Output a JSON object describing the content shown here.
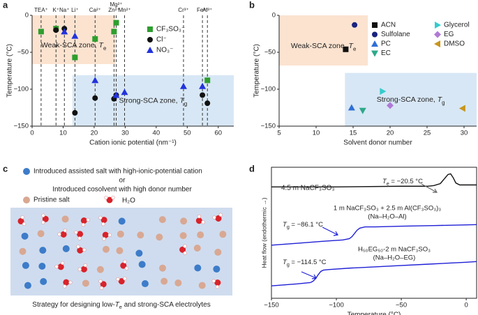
{
  "panel_labels": [
    "a",
    "b",
    "c",
    "d"
  ],
  "chart_data": [
    {
      "type": "scatter",
      "xlabel": "Cation ionic potential (nm⁻¹)",
      "ylabel": "Temperature (°C)",
      "xlim": [
        0,
        65
      ],
      "xticks": [
        0,
        10,
        20,
        30,
        40,
        50,
        60
      ],
      "ylim": [
        -150,
        0
      ],
      "yticks": [
        {
          "value": -150,
          "label": "−150"
        },
        {
          "value": -100,
          "label": "−100"
        },
        {
          "value": -50,
          "label": "−50"
        },
        0
      ],
      "cation_lines": {
        "labels": [
          "TEA⁺",
          "K⁺",
          "Na⁺",
          "Li⁺",
          "Ca²⁺",
          "Zn²⁺",
          "Mg²⁺",
          "Mn²⁺",
          "Cr³⁺",
          "Fe³⁺",
          "Al³⁺"
        ],
        "x": [
          2.9,
          7.7,
          10.4,
          13.8,
          20.3,
          26.4,
          27.1,
          29.8,
          48.8,
          54.9,
          56.5
        ]
      },
      "regions": [
        {
          "label": {
            "prefix": "Weak-SCA zone, ",
            "symbol": "T",
            "subscript": "e"
          },
          "x": [
            0,
            26.8
          ],
          "y": [
            -66,
            0
          ],
          "color": "#fbe3d0"
        },
        {
          "label": {
            "prefix": "Strong-SCA zone, ",
            "symbol": "T",
            "subscript": "g"
          },
          "x": [
            13,
            65
          ],
          "y": [
            -150,
            -81
          ],
          "color": "#d8e7f5"
        }
      ],
      "series": [
        {
          "name": "CF₃SO₃⁻",
          "color": "#2e9e2e",
          "marker": "square",
          "x": [
            2.9,
            7.7,
            13.8,
            20.3,
            26.4,
            27.1,
            56.5
          ],
          "values": [
            -22,
            -18,
            -57,
            -32,
            -22,
            -10,
            -88
          ]
        },
        {
          "name": "Cl⁻",
          "color": "#111111",
          "marker": "circle",
          "x": [
            7.7,
            10.4,
            13.8,
            20.3,
            26.4,
            27.1,
            54.9,
            56.5
          ],
          "values": [
            -20,
            -18,
            -132,
            -112,
            -113,
            -108,
            -108,
            -119
          ]
        },
        {
          "name": "NO₃⁻",
          "color": "#2233dd",
          "marker": "triangle-up",
          "x": [
            10.4,
            13.8,
            20.3,
            27.1,
            29.8,
            48.8,
            54.9
          ],
          "values": [
            -22,
            -28,
            -88,
            -108,
            -104,
            -96,
            -96
          ]
        }
      ]
    },
    {
      "type": "scatter",
      "xlabel": "Solvent donor number",
      "ylabel": "Temperature (°C)",
      "xlim": [
        5,
        31.7
      ],
      "xticks": [
        5,
        10,
        15,
        20,
        25,
        30
      ],
      "ylim": [
        -150,
        0
      ],
      "yticks": [
        {
          "value": -150,
          "label": "−150"
        },
        {
          "value": -100,
          "label": "−100"
        },
        {
          "value": -50,
          "label": "−50"
        },
        0
      ],
      "legend_columns": 2,
      "regions": [
        {
          "label": {
            "prefix": "Weak-SCA zone, ",
            "symbol": "T",
            "subscript": "e"
          },
          "x": [
            5,
            17
          ],
          "y": [
            -68,
            0
          ],
          "color": "#fbe3d0"
        },
        {
          "label": {
            "prefix": "Strong-SCA zone, ",
            "symbol": "T",
            "subscript": "g"
          },
          "x": [
            13.9,
            31.7
          ],
          "y": [
            -150,
            -78
          ],
          "color": "#d8e7f5"
        }
      ],
      "series": [
        {
          "name": "ACN",
          "color": "#111111",
          "marker": "square",
          "x": [
            14
          ],
          "values": [
            -46
          ]
        },
        {
          "name": "Sulfolane",
          "color": "#1a237e",
          "marker": "circle",
          "x": [
            15.2
          ],
          "values": [
            -13
          ]
        },
        {
          "name": "PC",
          "color": "#2f6fd6",
          "marker": "triangle-up",
          "x": [
            14.8
          ],
          "values": [
            -125
          ]
        },
        {
          "name": "EC",
          "color": "#2ea88a",
          "marker": "triangle-down",
          "x": [
            16.3
          ],
          "values": [
            -129
          ]
        },
        {
          "name": "Glycerol",
          "color": "#33cccc",
          "marker": "triangle-right",
          "x": [
            19
          ],
          "values": [
            -103
          ]
        },
        {
          "name": "EG",
          "color": "#b07ad6",
          "marker": "diamond",
          "x": [
            20
          ],
          "values": [
            -122
          ]
        },
        {
          "name": "DMSO",
          "color": "#c8961e",
          "marker": "triangle-left",
          "x": [
            29.8
          ],
          "values": [
            -126
          ]
        }
      ]
    },
    {
      "type": "line",
      "xlabel": "Temperature (°C)",
      "ylabel": "Heat flow (endothermic →)",
      "frame": true,
      "xlim": [
        -150,
        8
      ],
      "xticks": [
        {
          "value": -150,
          "label": "−150"
        },
        {
          "value": -100,
          "label": "−100"
        },
        {
          "value": -50,
          "label": "−50"
        },
        0
      ],
      "ylim": [
        0,
        10
      ],
      "series": [
        {
          "name": "4.5 m NaCF₃SO₃",
          "color": "#111111",
          "x": [
            -150,
            -100,
            -50,
            -30,
            -25,
            -20,
            -17,
            -14,
            -12,
            -10,
            -8,
            -5,
            0,
            8
          ],
          "values": [
            8.5,
            8.5,
            8.55,
            8.55,
            8.6,
            8.75,
            9.1,
            9.45,
            9.5,
            9.2,
            8.8,
            8.65,
            8.65,
            8.65
          ]
        },
        {
          "name": "1 m NaCF₃SO₃ + 2.5 m Al(CF₃SO₃)₃",
          "sub_name": "(Na–H₂O–Al)",
          "color": "#1f1fd6",
          "x": [
            -150,
            -130,
            -110,
            -95,
            -90,
            -88,
            -86,
            -84,
            -82,
            -78,
            -70,
            -50,
            -25,
            0,
            8
          ],
          "values": [
            4.05,
            4.2,
            4.35,
            4.45,
            4.55,
            4.7,
            4.95,
            5.2,
            5.35,
            5.45,
            5.45,
            5.5,
            5.55,
            5.6,
            5.62
          ]
        },
        {
          "name": "H₅₀EG₅₀-2 m NaCF₃SO₃",
          "sub_name": "(Na–H₂O–EG)",
          "color": "#1f1fd6",
          "x": [
            -150,
            -130,
            -120,
            -118,
            -116,
            -114,
            -112,
            -110,
            -105,
            -90,
            -60,
            -30,
            0,
            8
          ],
          "values": [
            0.95,
            1.1,
            1.2,
            1.3,
            1.5,
            1.8,
            2.05,
            2.15,
            2.2,
            2.3,
            2.45,
            2.6,
            2.75,
            2.8
          ]
        }
      ],
      "annotations": [
        {
          "symbol": "T",
          "subscript": "e",
          "suffix": " = −20.5 °C"
        },
        {
          "symbol": "T",
          "subscript": "g",
          "suffix": " = −86.1 °C"
        },
        {
          "symbol": "T",
          "subscript": "g",
          "suffix": " = −114.5 °C"
        }
      ]
    }
  ],
  "diagram": {
    "legend": [
      "Introduced assisted salt with high-ionic-potential cation",
      "or",
      "Introduced cosolvent with high donor number",
      "Pristine salt",
      "H₂O"
    ],
    "caption": {
      "prefix": "Strategy for designing low-",
      "symbol": "T",
      "subscript": "e",
      "suffix": " and strong-SCA electrolytes"
    }
  }
}
